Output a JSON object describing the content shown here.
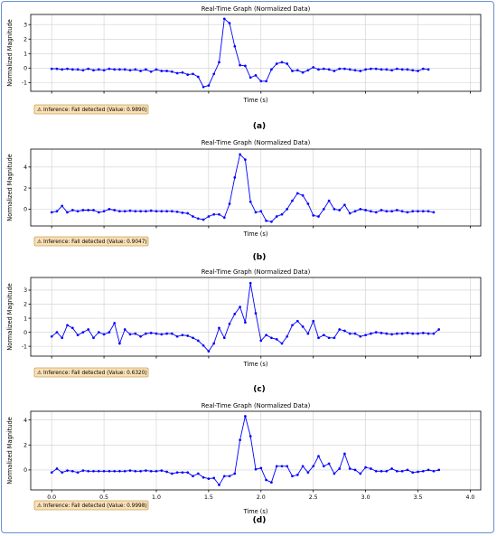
{
  "common": {
    "title": "Real-Time Graph (Normalized Data)",
    "ylabel": "Normalized Magnitude",
    "xlabel": "Time (s)",
    "line_color": "#0000ff",
    "badge_fill": "#f9e0b6",
    "badge_icon": "warning-icon"
  },
  "panels": [
    {
      "caption": "(a)",
      "badge": "⚠ Inference: Fall detected (Value: 0.9890)",
      "show_x_ticks": false,
      "yticks": [
        -1,
        0,
        1,
        2,
        3
      ],
      "ylim": [
        -1.6,
        3.7
      ]
    },
    {
      "caption": "(b)",
      "badge": "⚠ Inference: Fall detected (Value: 0.9047)",
      "show_x_ticks": false,
      "yticks": [
        0,
        2,
        4
      ],
      "ylim": [
        -1.6,
        5.7
      ]
    },
    {
      "caption": "(c)",
      "badge": "⚠ Inference: Fall detected (Value: 0.6320)",
      "show_x_ticks": false,
      "yticks": [
        -1,
        0,
        1,
        2,
        3
      ],
      "ylim": [
        -1.7,
        3.9
      ]
    },
    {
      "caption": "(d)",
      "badge": "⚠ Inference: Fall detected (Value: 0.9998)",
      "show_x_ticks": true,
      "yticks": [
        0,
        2,
        4
      ],
      "ylim": [
        -1.6,
        4.7
      ]
    }
  ],
  "chart_data": [
    {
      "type": "line",
      "title": "Real-Time Graph (Normalized Data)",
      "xlabel": "Time (s)",
      "ylabel": "Normalized Magnitude",
      "xlim": [
        -0.2,
        4.1
      ],
      "ylim": [
        -1.6,
        3.7
      ],
      "x_start": 0.0,
      "x_step": 0.05,
      "values": [
        -0.05,
        -0.05,
        -0.1,
        -0.05,
        -0.1,
        -0.1,
        -0.15,
        -0.05,
        -0.15,
        -0.1,
        -0.15,
        -0.05,
        -0.1,
        -0.1,
        -0.1,
        -0.15,
        -0.1,
        -0.2,
        -0.1,
        -0.25,
        -0.1,
        -0.2,
        -0.2,
        -0.25,
        -0.35,
        -0.3,
        -0.45,
        -0.4,
        -0.6,
        -1.3,
        -1.2,
        -0.4,
        0.4,
        3.4,
        3.1,
        1.5,
        0.2,
        0.15,
        -0.65,
        -0.5,
        -0.9,
        -0.9,
        -0.1,
        0.3,
        0.4,
        0.3,
        -0.2,
        -0.15,
        -0.3,
        -0.15,
        0.05,
        -0.1,
        -0.05,
        -0.1,
        -0.2,
        -0.05,
        -0.05,
        -0.1,
        -0.15,
        -0.2,
        -0.1,
        -0.05,
        -0.05,
        -0.1,
        -0.1,
        -0.15,
        -0.05,
        -0.1,
        -0.1,
        -0.15,
        -0.2,
        -0.05,
        -0.1
      ]
    },
    {
      "type": "line",
      "title": "Real-Time Graph (Normalized Data)",
      "xlabel": "Time (s)",
      "ylabel": "Normalized Magnitude",
      "xlim": [
        -0.2,
        4.1
      ],
      "ylim": [
        -1.6,
        5.7
      ],
      "x_start": 0.0,
      "x_step": 0.05,
      "values": [
        -0.3,
        -0.2,
        0.3,
        -0.3,
        -0.1,
        -0.2,
        -0.1,
        -0.1,
        -0.1,
        -0.3,
        -0.2,
        0.0,
        -0.1,
        -0.2,
        -0.2,
        -0.15,
        -0.2,
        -0.2,
        -0.2,
        -0.15,
        -0.2,
        -0.2,
        -0.2,
        -0.2,
        -0.25,
        -0.35,
        -0.4,
        -0.7,
        -0.9,
        -1.0,
        -0.7,
        -0.5,
        -0.5,
        -0.8,
        0.5,
        3.0,
        5.2,
        4.7,
        0.7,
        -0.3,
        -0.2,
        -1.1,
        -1.2,
        -0.7,
        -0.5,
        0.0,
        0.8,
        1.5,
        1.3,
        0.5,
        -0.6,
        -0.7,
        0.0,
        0.8,
        0.0,
        -0.1,
        0.4,
        -0.4,
        -0.2,
        0.0,
        -0.1,
        -0.2,
        -0.3,
        -0.1,
        -0.2,
        -0.2,
        -0.1,
        -0.2,
        -0.3,
        -0.2,
        -0.2,
        -0.2,
        -0.2,
        -0.3
      ]
    },
    {
      "type": "line",
      "title": "Real-Time Graph (Normalized Data)",
      "xlabel": "Time (s)",
      "ylabel": "Normalized Magnitude",
      "xlim": [
        -0.2,
        4.1
      ],
      "ylim": [
        -1.7,
        3.9
      ],
      "x_start": 0.0,
      "x_step": 0.05,
      "values": [
        -0.3,
        0.0,
        -0.4,
        0.5,
        0.3,
        -0.2,
        0.0,
        0.2,
        -0.4,
        0.0,
        -0.15,
        0.0,
        0.65,
        -0.8,
        0.2,
        -0.15,
        -0.1,
        -0.3,
        -0.1,
        -0.05,
        -0.1,
        -0.15,
        -0.1,
        -0.1,
        -0.3,
        -0.2,
        -0.25,
        -0.4,
        -0.6,
        -0.95,
        -1.35,
        -0.8,
        0.3,
        -0.4,
        0.6,
        1.3,
        1.8,
        0.7,
        3.5,
        1.35,
        -0.6,
        -0.2,
        -0.4,
        -0.5,
        -0.8,
        -0.3,
        0.5,
        0.8,
        0.4,
        -0.1,
        0.8,
        -0.4,
        -0.2,
        -0.4,
        -0.4,
        0.2,
        0.1,
        -0.1,
        -0.1,
        -0.3,
        -0.2,
        -0.1,
        0.0,
        -0.05,
        -0.1,
        -0.15,
        -0.1,
        -0.1,
        -0.05,
        -0.1,
        -0.1,
        -0.05,
        -0.1,
        -0.1,
        0.2
      ]
    },
    {
      "type": "line",
      "title": "Real-Time Graph (Normalized Data)",
      "xlabel": "Time (s)",
      "ylabel": "Normalized Magnitude",
      "xlim": [
        -0.2,
        4.1
      ],
      "ylim": [
        -1.6,
        4.7
      ],
      "xticks": [
        0.0,
        0.5,
        1.0,
        1.5,
        2.0,
        2.5,
        3.0,
        3.5,
        4.0
      ],
      "xticklabels": [
        "0.0",
        "0.5",
        "1.0",
        "1.5",
        "2.0",
        "2.5",
        "3.0",
        "3.5",
        "4.0"
      ],
      "x_start": 0.0,
      "x_step": 0.05,
      "values": [
        -0.2,
        0.1,
        -0.2,
        -0.05,
        -0.1,
        -0.2,
        -0.05,
        -0.1,
        -0.1,
        -0.1,
        -0.1,
        -0.1,
        -0.1,
        -0.1,
        -0.1,
        -0.05,
        -0.1,
        -0.1,
        -0.05,
        -0.1,
        -0.1,
        -0.05,
        -0.15,
        -0.3,
        -0.2,
        -0.2,
        -0.2,
        -0.5,
        -0.3,
        -0.6,
        -0.7,
        -0.65,
        -1.2,
        -0.5,
        -0.5,
        -0.3,
        2.4,
        4.3,
        2.7,
        0.05,
        0.15,
        -0.8,
        -1.0,
        0.3,
        0.3,
        0.3,
        -0.5,
        -0.4,
        0.3,
        -0.2,
        0.3,
        1.1,
        0.3,
        0.5,
        -0.3,
        0.1,
        1.3,
        0.1,
        0.0,
        -0.3,
        0.2,
        0.1,
        -0.1,
        -0.1,
        -0.1,
        0.1,
        -0.1,
        -0.1,
        0.0,
        -0.2,
        -0.15,
        -0.1,
        0.0,
        -0.1,
        0.0
      ]
    }
  ]
}
